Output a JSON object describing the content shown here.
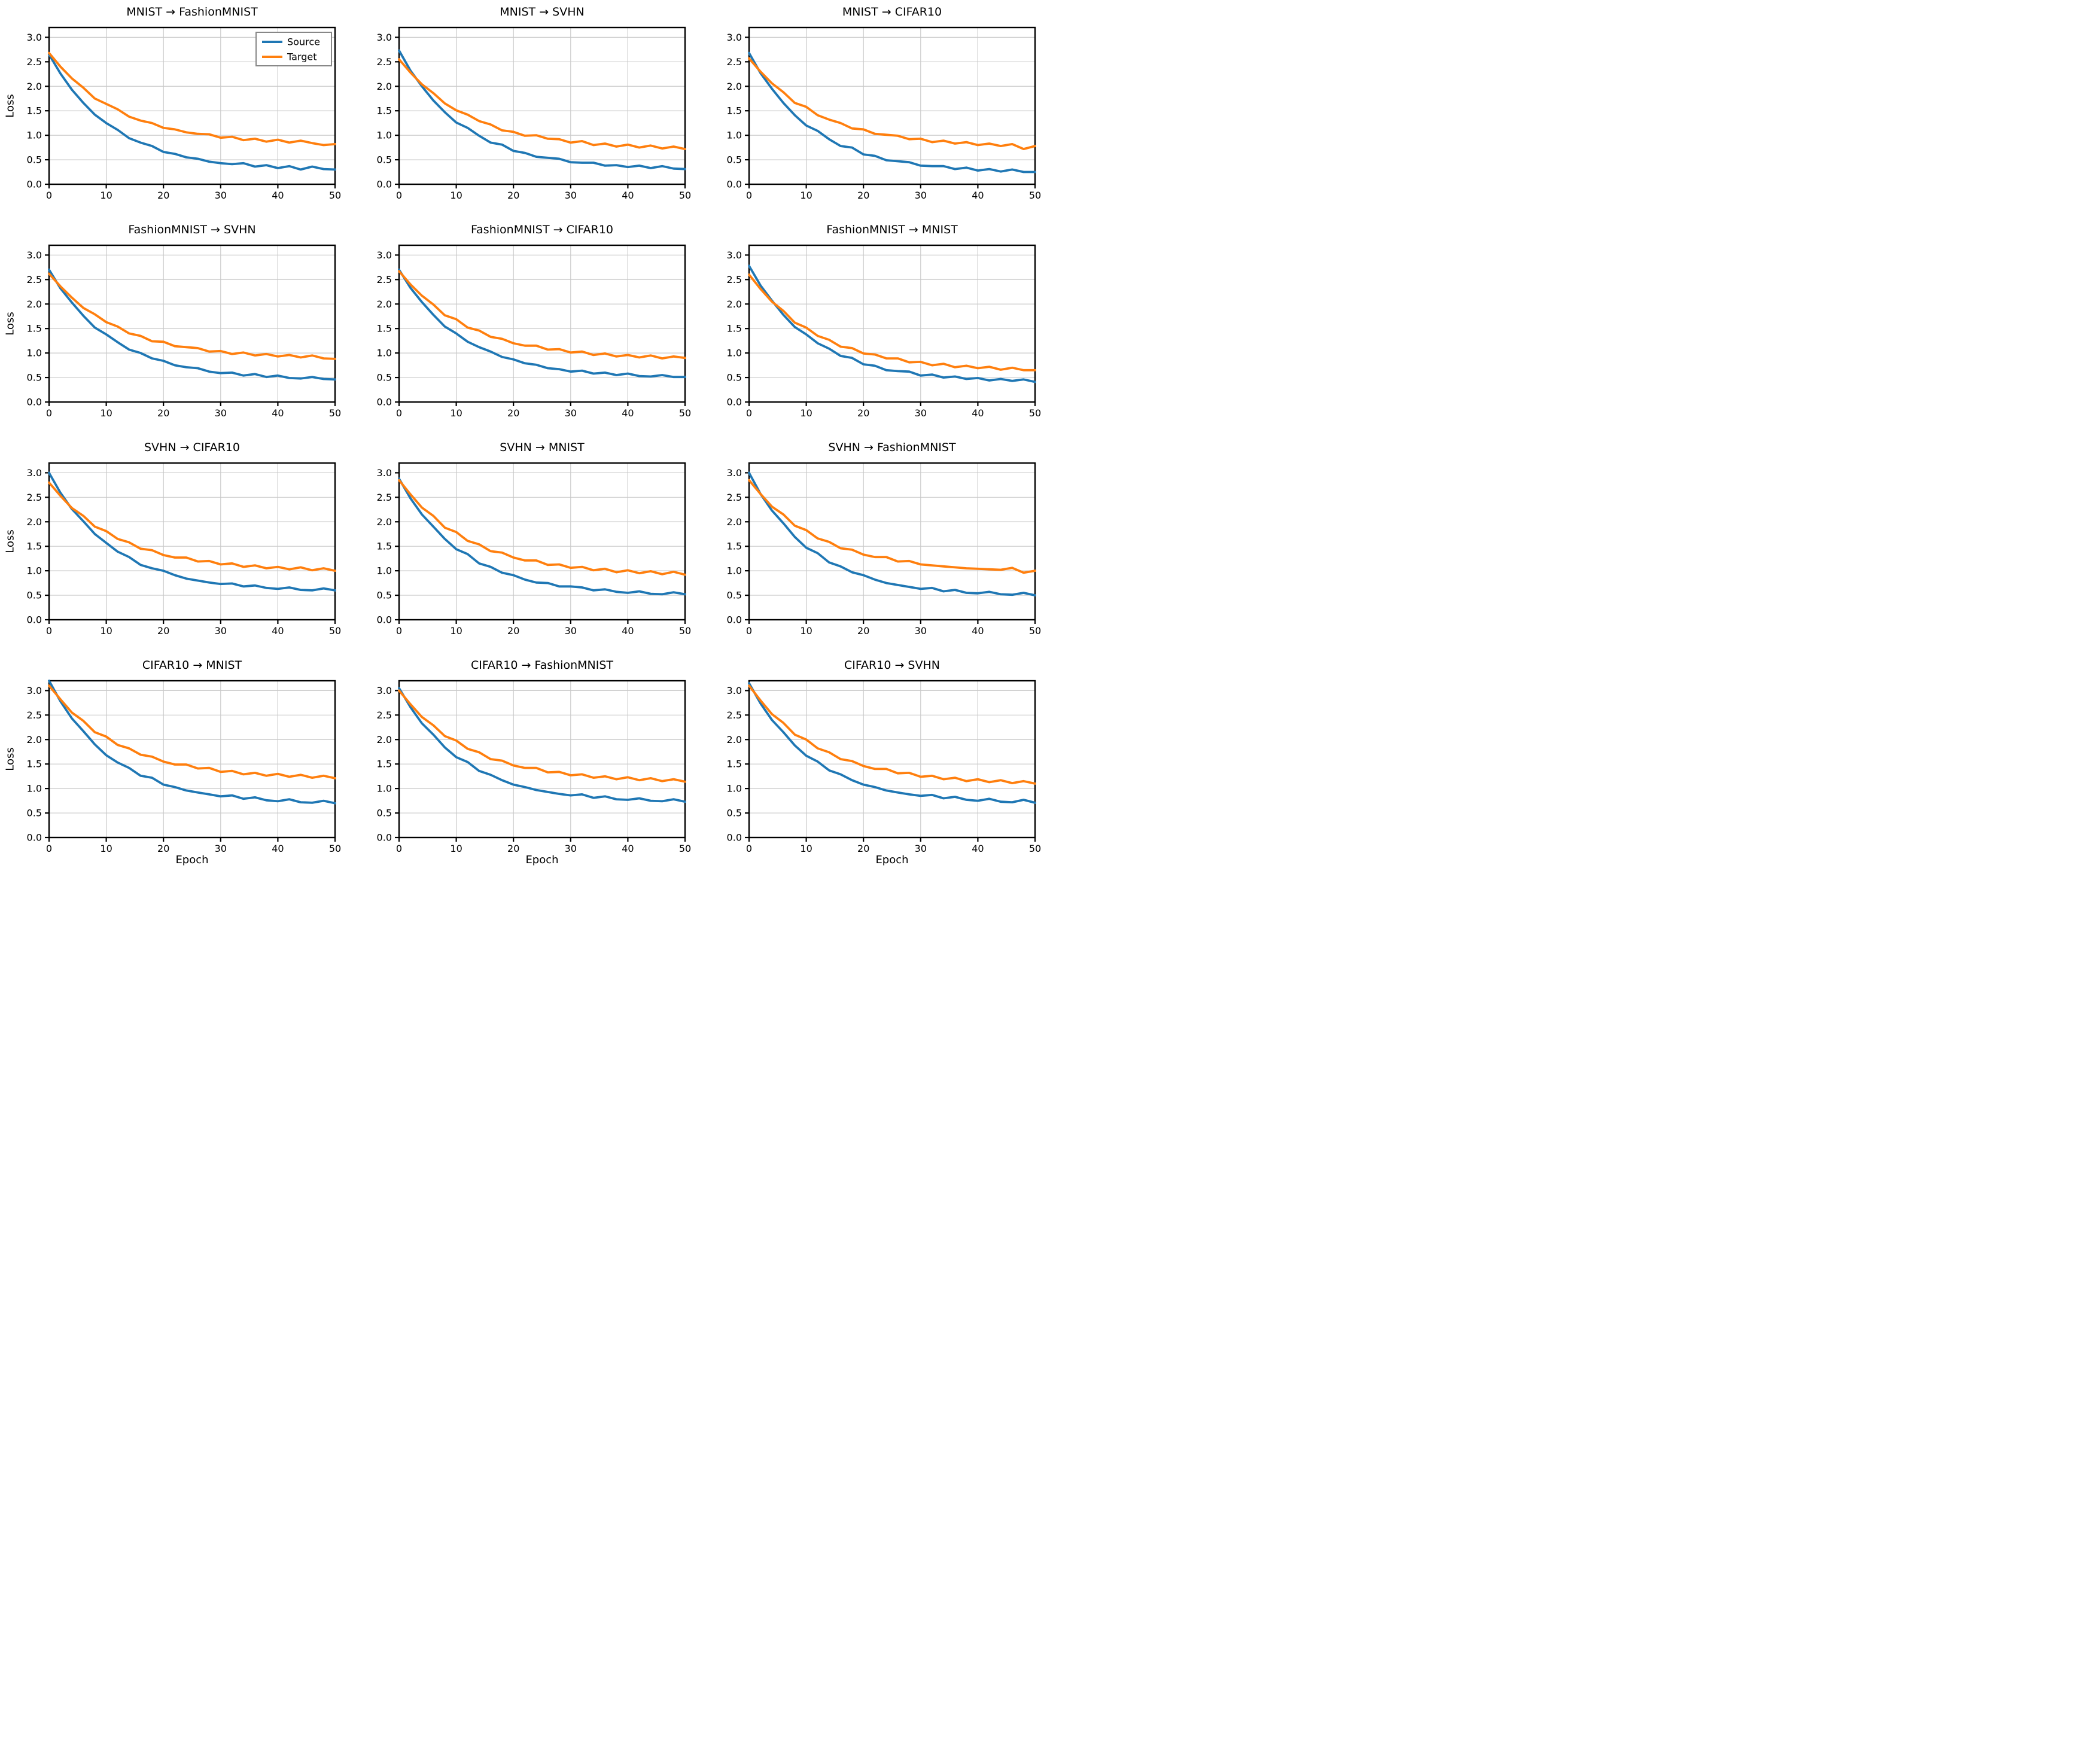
{
  "figure": {
    "ylabel": "Loss",
    "xlabel": "Epoch",
    "legend_labels": [
      "Source",
      "Target"
    ],
    "colors": {
      "source": "#1f77b4",
      "target": "#ff7f0e",
      "grid": "#c9c9c9",
      "spine": "#000000",
      "legend_border": "#878787",
      "background": "#ffffff"
    },
    "x_ticks": [
      0,
      10,
      20,
      30,
      40,
      50
    ],
    "y_ticks": [
      0.0,
      0.5,
      1.0,
      1.5,
      2.0,
      2.5,
      3.0
    ],
    "xlim": [
      0,
      50
    ],
    "ylim": [
      0,
      3.2
    ],
    "grid": true,
    "legend_position": "upper right"
  },
  "chart_data": [
    {
      "type": "line",
      "title": "MNIST → FashionMNIST",
      "show_legend": true,
      "show_ylabel": true,
      "show_xlabel": false,
      "x": [
        0,
        2,
        4,
        6,
        8,
        10,
        12,
        14,
        16,
        18,
        20,
        22,
        24,
        26,
        28,
        30,
        32,
        34,
        36,
        38,
        40,
        42,
        44,
        46,
        48,
        50
      ],
      "series": [
        {
          "name": "Source",
          "values": [
            2.65,
            2.26,
            1.93,
            1.66,
            1.42,
            1.25,
            1.11,
            0.94,
            0.85,
            0.78,
            0.66,
            0.62,
            0.55,
            0.52,
            0.46,
            0.43,
            0.41,
            0.43,
            0.36,
            0.39,
            0.33,
            0.37,
            0.3,
            0.36,
            0.31,
            0.3
          ]
        },
        {
          "name": "Target",
          "values": [
            2.68,
            2.4,
            2.16,
            1.97,
            1.75,
            1.64,
            1.53,
            1.38,
            1.3,
            1.25,
            1.15,
            1.12,
            1.06,
            1.03,
            1.02,
            0.95,
            0.97,
            0.9,
            0.93,
            0.87,
            0.91,
            0.85,
            0.89,
            0.84,
            0.8,
            0.82
          ]
        }
      ]
    },
    {
      "type": "line",
      "title": "MNIST → SVHN",
      "show_legend": false,
      "show_ylabel": false,
      "show_xlabel": false,
      "x": [
        0,
        2,
        4,
        6,
        8,
        10,
        12,
        14,
        16,
        18,
        20,
        22,
        24,
        26,
        28,
        30,
        32,
        34,
        36,
        38,
        40,
        42,
        44,
        46,
        48,
        50
      ],
      "series": [
        {
          "name": "Source",
          "values": [
            2.73,
            2.32,
            2.0,
            1.71,
            1.47,
            1.26,
            1.15,
            0.99,
            0.85,
            0.81,
            0.68,
            0.64,
            0.56,
            0.54,
            0.52,
            0.45,
            0.44,
            0.44,
            0.38,
            0.39,
            0.35,
            0.38,
            0.33,
            0.37,
            0.32,
            0.31
          ]
        },
        {
          "name": "Target",
          "values": [
            2.55,
            2.28,
            2.04,
            1.86,
            1.65,
            1.51,
            1.42,
            1.29,
            1.22,
            1.1,
            1.07,
            0.99,
            1.0,
            0.93,
            0.92,
            0.85,
            0.88,
            0.8,
            0.83,
            0.77,
            0.81,
            0.75,
            0.79,
            0.73,
            0.77,
            0.72
          ]
        }
      ]
    },
    {
      "type": "line",
      "title": "MNIST → CIFAR10",
      "show_legend": false,
      "show_ylabel": false,
      "show_xlabel": false,
      "x": [
        0,
        2,
        4,
        6,
        8,
        10,
        12,
        14,
        16,
        18,
        20,
        22,
        24,
        26,
        28,
        30,
        32,
        34,
        36,
        38,
        40,
        42,
        44,
        46,
        48,
        50
      ],
      "series": [
        {
          "name": "Source",
          "values": [
            2.68,
            2.27,
            1.95,
            1.66,
            1.41,
            1.2,
            1.09,
            0.92,
            0.78,
            0.75,
            0.61,
            0.58,
            0.49,
            0.47,
            0.45,
            0.38,
            0.37,
            0.37,
            0.31,
            0.34,
            0.28,
            0.31,
            0.26,
            0.3,
            0.25,
            0.25
          ]
        },
        {
          "name": "Target",
          "values": [
            2.57,
            2.3,
            2.06,
            1.88,
            1.66,
            1.58,
            1.41,
            1.32,
            1.25,
            1.14,
            1.12,
            1.03,
            1.01,
            0.99,
            0.92,
            0.93,
            0.86,
            0.89,
            0.83,
            0.86,
            0.8,
            0.83,
            0.78,
            0.82,
            0.72,
            0.78
          ]
        }
      ]
    },
    {
      "type": "line",
      "title": "FashionMNIST → SVHN",
      "show_legend": false,
      "show_ylabel": true,
      "show_xlabel": false,
      "x": [
        0,
        2,
        4,
        6,
        8,
        10,
        12,
        14,
        16,
        18,
        20,
        22,
        24,
        26,
        28,
        30,
        32,
        34,
        36,
        38,
        40,
        42,
        44,
        46,
        48,
        50
      ],
      "series": [
        {
          "name": "Source",
          "values": [
            2.7,
            2.32,
            2.03,
            1.76,
            1.52,
            1.38,
            1.22,
            1.07,
            1.0,
            0.89,
            0.84,
            0.75,
            0.71,
            0.69,
            0.62,
            0.59,
            0.6,
            0.54,
            0.57,
            0.51,
            0.54,
            0.49,
            0.48,
            0.51,
            0.47,
            0.46
          ]
        },
        {
          "name": "Target",
          "values": [
            2.62,
            2.36,
            2.13,
            1.92,
            1.79,
            1.63,
            1.54,
            1.4,
            1.35,
            1.24,
            1.23,
            1.14,
            1.12,
            1.1,
            1.03,
            1.04,
            0.98,
            1.01,
            0.95,
            0.98,
            0.93,
            0.96,
            0.91,
            0.95,
            0.89,
            0.88
          ]
        }
      ]
    },
    {
      "type": "line",
      "title": "FashionMNIST → CIFAR10",
      "show_legend": false,
      "show_ylabel": false,
      "show_xlabel": false,
      "x": [
        0,
        2,
        4,
        6,
        8,
        10,
        12,
        14,
        16,
        18,
        20,
        22,
        24,
        26,
        28,
        30,
        32,
        34,
        36,
        38,
        40,
        42,
        44,
        46,
        48,
        50
      ],
      "series": [
        {
          "name": "Source",
          "values": [
            2.7,
            2.33,
            2.04,
            1.78,
            1.54,
            1.4,
            1.23,
            1.12,
            1.03,
            0.92,
            0.87,
            0.79,
            0.76,
            0.69,
            0.67,
            0.62,
            0.64,
            0.58,
            0.6,
            0.55,
            0.58,
            0.53,
            0.52,
            0.55,
            0.51,
            0.51
          ]
        },
        {
          "name": "Target",
          "values": [
            2.67,
            2.4,
            2.17,
            1.99,
            1.77,
            1.69,
            1.52,
            1.46,
            1.33,
            1.29,
            1.2,
            1.15,
            1.15,
            1.07,
            1.08,
            1.01,
            1.03,
            0.96,
            0.99,
            0.93,
            0.96,
            0.91,
            0.95,
            0.89,
            0.93,
            0.9
          ]
        }
      ]
    },
    {
      "type": "line",
      "title": "FashionMNIST → MNIST",
      "show_legend": false,
      "show_ylabel": false,
      "show_xlabel": false,
      "x": [
        0,
        2,
        4,
        6,
        8,
        10,
        12,
        14,
        16,
        18,
        20,
        22,
        24,
        26,
        28,
        30,
        32,
        34,
        36,
        38,
        40,
        42,
        44,
        46,
        48,
        50
      ],
      "series": [
        {
          "name": "Source",
          "values": [
            2.78,
            2.38,
            2.07,
            1.78,
            1.53,
            1.38,
            1.2,
            1.09,
            0.94,
            0.9,
            0.77,
            0.74,
            0.65,
            0.63,
            0.62,
            0.54,
            0.56,
            0.5,
            0.52,
            0.47,
            0.49,
            0.44,
            0.47,
            0.43,
            0.46,
            0.41
          ]
        },
        {
          "name": "Target",
          "values": [
            2.6,
            2.31,
            2.05,
            1.86,
            1.62,
            1.52,
            1.35,
            1.27,
            1.13,
            1.1,
            0.99,
            0.97,
            0.89,
            0.89,
            0.81,
            0.82,
            0.75,
            0.78,
            0.71,
            0.74,
            0.69,
            0.72,
            0.66,
            0.7,
            0.65,
            0.65
          ]
        }
      ]
    },
    {
      "type": "line",
      "title": "SVHN → CIFAR10",
      "show_legend": false,
      "show_ylabel": true,
      "show_xlabel": false,
      "x": [
        0,
        2,
        4,
        6,
        8,
        10,
        12,
        14,
        16,
        18,
        20,
        22,
        24,
        26,
        28,
        30,
        32,
        34,
        36,
        38,
        40,
        42,
        44,
        46,
        48,
        50
      ],
      "series": [
        {
          "name": "Source",
          "values": [
            3.0,
            2.59,
            2.26,
            2.01,
            1.75,
            1.57,
            1.39,
            1.28,
            1.12,
            1.05,
            1.0,
            0.91,
            0.84,
            0.8,
            0.76,
            0.73,
            0.74,
            0.68,
            0.7,
            0.65,
            0.63,
            0.66,
            0.61,
            0.6,
            0.64,
            0.6
          ]
        },
        {
          "name": "Target",
          "values": [
            2.8,
            2.53,
            2.28,
            2.12,
            1.9,
            1.81,
            1.65,
            1.58,
            1.45,
            1.42,
            1.32,
            1.27,
            1.27,
            1.19,
            1.2,
            1.13,
            1.15,
            1.08,
            1.11,
            1.05,
            1.08,
            1.03,
            1.07,
            1.01,
            1.05,
            1.0
          ]
        }
      ]
    },
    {
      "type": "line",
      "title": "SVHN → MNIST",
      "show_legend": false,
      "show_ylabel": false,
      "show_xlabel": false,
      "x": [
        0,
        2,
        4,
        6,
        8,
        10,
        12,
        14,
        16,
        18,
        20,
        22,
        24,
        26,
        28,
        30,
        32,
        34,
        36,
        38,
        40,
        42,
        44,
        46,
        48,
        50
      ],
      "series": [
        {
          "name": "Source",
          "values": [
            2.88,
            2.48,
            2.15,
            1.9,
            1.65,
            1.44,
            1.34,
            1.15,
            1.08,
            0.96,
            0.91,
            0.82,
            0.76,
            0.75,
            0.68,
            0.68,
            0.66,
            0.6,
            0.62,
            0.57,
            0.55,
            0.58,
            0.53,
            0.52,
            0.56,
            0.52
          ]
        },
        {
          "name": "Target",
          "values": [
            2.85,
            2.56,
            2.29,
            2.12,
            1.88,
            1.79,
            1.61,
            1.54,
            1.4,
            1.37,
            1.27,
            1.21,
            1.21,
            1.12,
            1.13,
            1.06,
            1.08,
            1.01,
            1.04,
            0.97,
            1.01,
            0.95,
            0.99,
            0.93,
            0.98,
            0.92
          ]
        }
      ]
    },
    {
      "type": "line",
      "title": "SVHN → FashionMNIST",
      "show_legend": false,
      "show_ylabel": false,
      "show_xlabel": false,
      "x": [
        0,
        2,
        4,
        6,
        8,
        10,
        12,
        14,
        16,
        18,
        20,
        22,
        24,
        26,
        28,
        30,
        32,
        34,
        36,
        38,
        40,
        42,
        44,
        46,
        48,
        50
      ],
      "series": [
        {
          "name": "Source",
          "values": [
            3.0,
            2.57,
            2.23,
            1.97,
            1.69,
            1.47,
            1.36,
            1.17,
            1.09,
            0.97,
            0.91,
            0.82,
            0.75,
            0.71,
            0.67,
            0.63,
            0.65,
            0.58,
            0.61,
            0.55,
            0.54,
            0.57,
            0.52,
            0.51,
            0.55,
            0.5
          ]
        },
        {
          "name": "Target",
          "values": [
            2.85,
            2.57,
            2.31,
            2.15,
            1.92,
            1.83,
            1.66,
            1.59,
            1.46,
            1.43,
            1.33,
            1.28,
            1.28,
            1.19,
            1.2,
            1.13,
            1.11,
            1.09,
            1.07,
            1.05,
            1.04,
            1.03,
            1.02,
            1.06,
            0.96,
            1.0
          ]
        }
      ]
    },
    {
      "type": "line",
      "title": "CIFAR10 → MNIST",
      "show_legend": false,
      "show_ylabel": true,
      "show_xlabel": true,
      "x": [
        0,
        2,
        4,
        6,
        8,
        10,
        12,
        14,
        16,
        18,
        20,
        22,
        24,
        26,
        28,
        30,
        32,
        34,
        36,
        38,
        40,
        42,
        44,
        46,
        48,
        50
      ],
      "series": [
        {
          "name": "Source",
          "values": [
            3.2,
            2.78,
            2.43,
            2.17,
            1.9,
            1.68,
            1.53,
            1.42,
            1.26,
            1.22,
            1.08,
            1.03,
            0.96,
            0.92,
            0.88,
            0.84,
            0.86,
            0.79,
            0.82,
            0.76,
            0.74,
            0.78,
            0.72,
            0.71,
            0.75,
            0.7
          ]
        },
        {
          "name": "Target",
          "values": [
            3.1,
            2.82,
            2.55,
            2.38,
            2.15,
            2.06,
            1.89,
            1.82,
            1.69,
            1.65,
            1.55,
            1.49,
            1.49,
            1.41,
            1.42,
            1.34,
            1.36,
            1.29,
            1.32,
            1.26,
            1.3,
            1.24,
            1.28,
            1.22,
            1.26,
            1.21
          ]
        }
      ]
    },
    {
      "type": "line",
      "title": "CIFAR10 → FashionMNIST",
      "show_legend": false,
      "show_ylabel": false,
      "show_xlabel": true,
      "x": [
        0,
        2,
        4,
        6,
        8,
        10,
        12,
        14,
        16,
        18,
        20,
        22,
        24,
        26,
        28,
        30,
        32,
        34,
        36,
        38,
        40,
        42,
        44,
        46,
        48,
        50
      ],
      "series": [
        {
          "name": "Source",
          "values": [
            3.05,
            2.66,
            2.33,
            2.1,
            1.84,
            1.64,
            1.54,
            1.36,
            1.28,
            1.17,
            1.08,
            1.03,
            0.97,
            0.93,
            0.89,
            0.86,
            0.88,
            0.81,
            0.84,
            0.78,
            0.77,
            0.8,
            0.75,
            0.74,
            0.78,
            0.73
          ]
        },
        {
          "name": "Target",
          "values": [
            3.0,
            2.72,
            2.46,
            2.29,
            2.07,
            1.98,
            1.81,
            1.74,
            1.6,
            1.57,
            1.47,
            1.42,
            1.42,
            1.33,
            1.34,
            1.27,
            1.29,
            1.22,
            1.25,
            1.19,
            1.23,
            1.17,
            1.21,
            1.15,
            1.19,
            1.14
          ]
        }
      ]
    },
    {
      "type": "line",
      "title": "CIFAR10 → SVHN",
      "show_legend": false,
      "show_ylabel": false,
      "show_xlabel": true,
      "x": [
        0,
        2,
        4,
        6,
        8,
        10,
        12,
        14,
        16,
        18,
        20,
        22,
        24,
        26,
        28,
        30,
        32,
        34,
        36,
        38,
        40,
        42,
        44,
        46,
        48,
        50
      ],
      "series": [
        {
          "name": "Source",
          "values": [
            3.15,
            2.74,
            2.4,
            2.15,
            1.88,
            1.67,
            1.55,
            1.37,
            1.29,
            1.17,
            1.08,
            1.03,
            0.96,
            0.92,
            0.88,
            0.85,
            0.87,
            0.8,
            0.83,
            0.77,
            0.75,
            0.79,
            0.73,
            0.72,
            0.77,
            0.71
          ]
        },
        {
          "name": "Target",
          "values": [
            3.1,
            2.8,
            2.52,
            2.34,
            2.1,
            2.0,
            1.82,
            1.74,
            1.6,
            1.56,
            1.46,
            1.4,
            1.4,
            1.31,
            1.32,
            1.24,
            1.26,
            1.19,
            1.22,
            1.15,
            1.19,
            1.13,
            1.17,
            1.11,
            1.15,
            1.1
          ]
        }
      ]
    }
  ]
}
